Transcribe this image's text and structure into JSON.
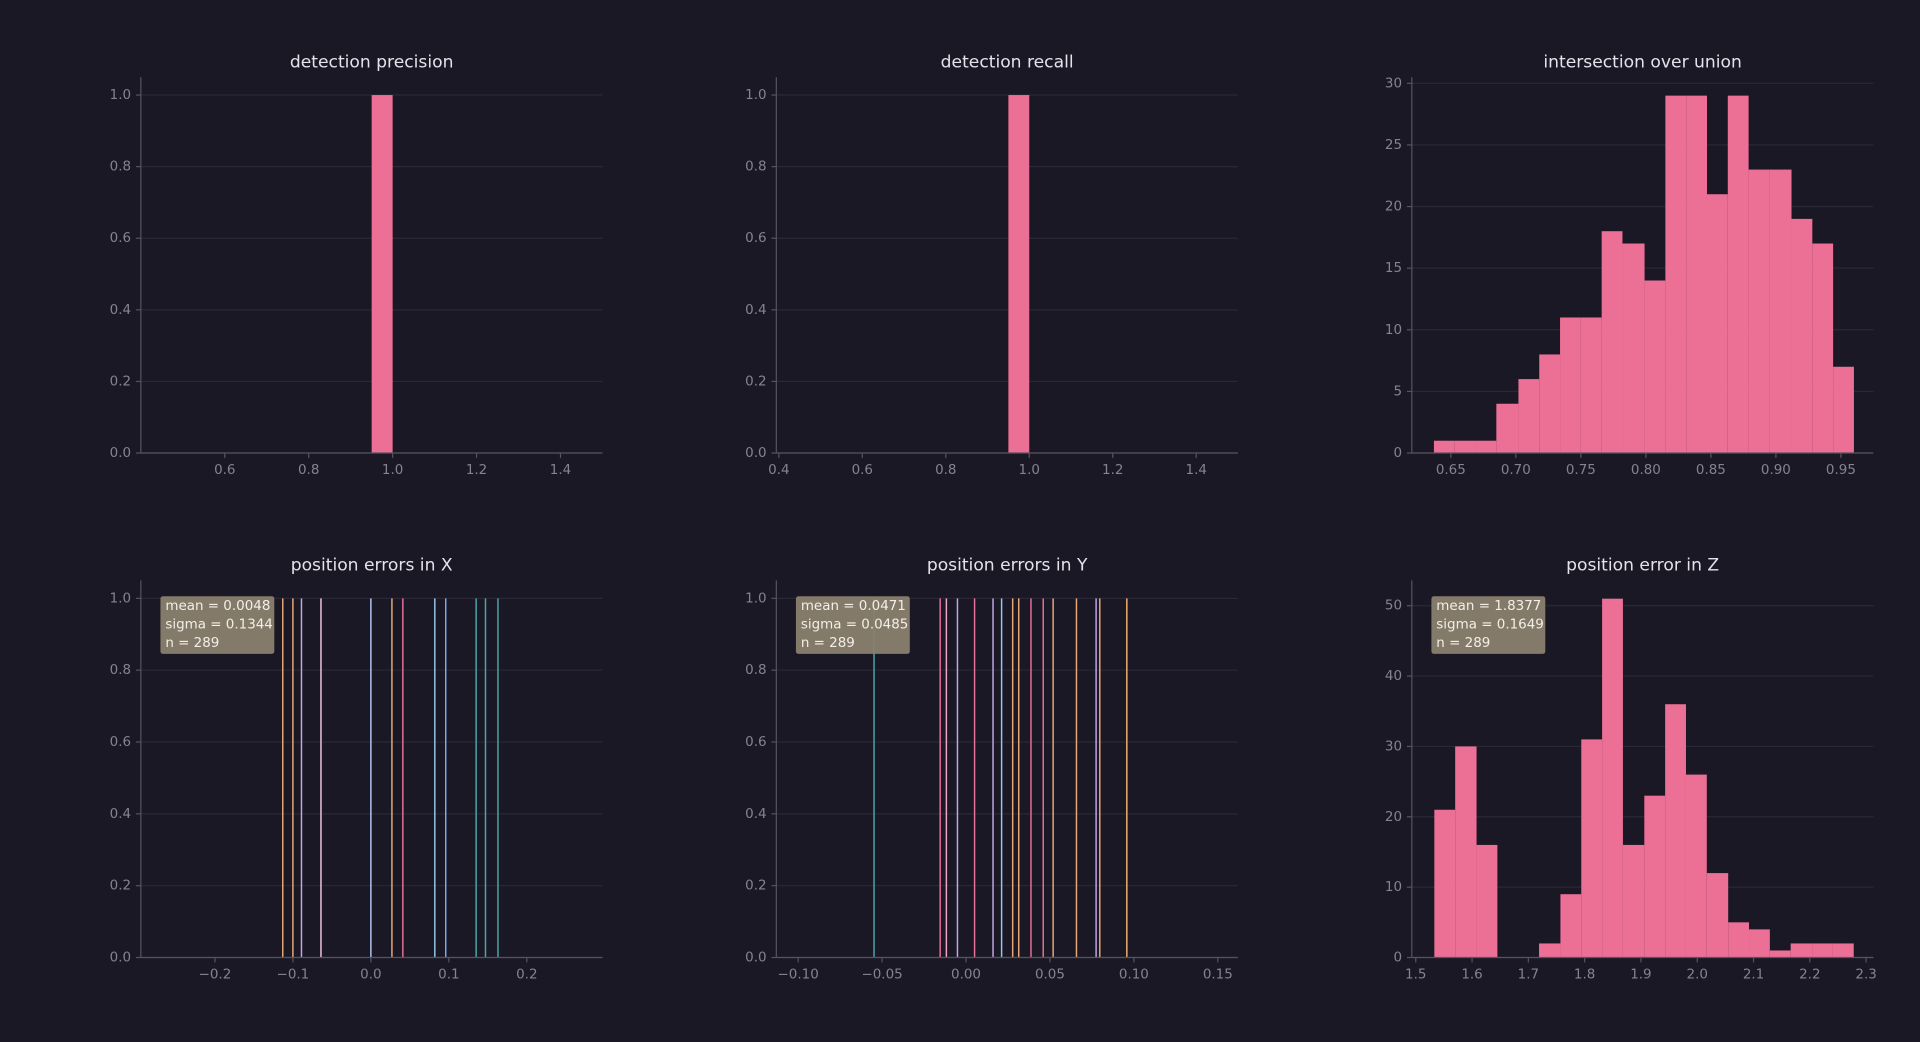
{
  "chart_data": [
    {
      "type": "histogram",
      "title": "detection precision",
      "bins": [
        0.95,
        1.0
      ],
      "values": [
        1.0
      ],
      "color": "#ec6f96",
      "xlim": [
        0.4,
        1.5
      ],
      "ylim": [
        0,
        1.05
      ],
      "xticks": [
        0.6,
        0.8,
        {
          "value": 1.0,
          "label": "1.0"
        },
        1.2,
        1.4
      ],
      "yticks": [
        {
          "value": 0,
          "label": "0.0"
        },
        0.2,
        0.4,
        0.6,
        0.8,
        {
          "value": 1.0,
          "label": "1.0"
        }
      ],
      "grid": true
    },
    {
      "type": "histogram",
      "title": "detection recall",
      "bins": [
        0.95,
        1.0
      ],
      "values": [
        1.0
      ],
      "color": "#ec6f96",
      "xlim": [
        0.394,
        1.5
      ],
      "ylim": [
        0,
        1.05
      ],
      "xticks": [
        0.4,
        0.6,
        0.8,
        {
          "value": 1.0,
          "label": "1.0"
        },
        1.2,
        1.4
      ],
      "yticks": [
        {
          "value": 0,
          "label": "0.0"
        },
        0.2,
        0.4,
        0.6,
        0.8,
        {
          "value": 1.0,
          "label": "1.0"
        }
      ],
      "grid": true
    },
    {
      "type": "histogram",
      "title": "intersection over union",
      "bins": [
        0.637,
        0.653,
        0.669,
        0.685,
        0.702,
        0.718,
        0.734,
        0.75,
        0.766,
        0.782,
        0.799,
        0.815,
        0.831,
        0.847,
        0.863,
        0.879,
        0.895,
        0.912,
        0.928,
        0.944,
        0.96
      ],
      "values": [
        1,
        1,
        1,
        4,
        6,
        8,
        11,
        11,
        18,
        17,
        14,
        29,
        29,
        21,
        29,
        23,
        23,
        19,
        17,
        7
      ],
      "color": "#ec6f96",
      "xlim": [
        0.62,
        0.975
      ],
      "ylim": [
        0,
        30.5
      ],
      "xticks": [
        0.65,
        {
          "value": 0.7,
          "label": "0.70"
        },
        0.75,
        {
          "value": 0.8,
          "label": "0.80"
        },
        0.85,
        {
          "value": 0.9,
          "label": "0.90"
        },
        0.95
      ],
      "yticks": [
        0,
        5,
        10,
        15,
        20,
        25,
        30
      ],
      "grid": true
    },
    {
      "type": "vlines",
      "title": "position errors in X",
      "x": [
        -0.113,
        -0.1,
        -0.089,
        -0.064,
        0.0,
        0.027,
        0.041,
        0.082,
        0.096,
        0.135,
        0.147,
        0.163
      ],
      "values": [
        1,
        1,
        1,
        1,
        1,
        1,
        1,
        1,
        1,
        1,
        1,
        1
      ],
      "colors": [
        "#e9a878",
        "#e9a878",
        "#c3a6e8",
        "#f0c6dc",
        "#b4c6f0",
        "#e9a878",
        "#e8709a",
        "#94c8ee",
        "#7ca8e8",
        "#4aa6aa",
        "#4aa6aa",
        "#4aa6aa"
      ],
      "xlim": [
        -0.295,
        0.297
      ],
      "ylim": [
        0,
        1.05
      ],
      "xticks": [
        {
          "value": -0.2,
          "label": "−0.2"
        },
        {
          "value": -0.1,
          "label": "−0.1"
        },
        {
          "value": 0,
          "label": "0.0"
        },
        0.1,
        0.2
      ],
      "yticks": [
        {
          "value": 0,
          "label": "0.0"
        },
        0.2,
        0.4,
        0.6,
        0.8,
        {
          "value": 1.0,
          "label": "1.0"
        }
      ],
      "grid": true,
      "annotation": [
        "mean = 0.0048",
        "sigma = 0.1344",
        "n = 289"
      ]
    },
    {
      "type": "vlines",
      "title": "position errors in Y",
      "x": [
        -0.0548,
        -0.0154,
        -0.0117,
        -0.0051,
        0.0051,
        0.0161,
        0.0212,
        0.0278,
        0.0314,
        0.0387,
        0.046,
        0.0519,
        0.0658,
        0.0775,
        0.0797,
        0.0958
      ],
      "values": [
        1,
        1,
        1,
        1,
        1,
        1,
        1,
        1,
        1,
        1,
        1,
        1,
        1,
        1,
        1,
        1
      ],
      "colors": [
        "#4aa6aa",
        "#e8709a",
        "#f0a6c8",
        "#c3a6e8",
        "#e8709a",
        "#c3a6e8",
        "#94c8ee",
        "#e9a878",
        "#e9a878",
        "#e8709a",
        "#e8709a",
        "#e9a878",
        "#e9a878",
        "#c3a6e8",
        "#e9a878",
        "#f2b070"
      ],
      "xlim": [
        -0.113,
        0.162
      ],
      "ylim": [
        0,
        1.05
      ],
      "xticks": [
        {
          "value": -0.1,
          "label": "−0.10"
        },
        {
          "value": -0.05,
          "label": "−0.05"
        },
        {
          "value": 0,
          "label": "0.00"
        },
        0.05,
        {
          "value": 0.1,
          "label": "0.10"
        },
        0.15
      ],
      "yticks": [
        {
          "value": 0,
          "label": "0.0"
        },
        0.2,
        0.4,
        0.6,
        0.8,
        {
          "value": 1.0,
          "label": "1.0"
        }
      ],
      "grid": true,
      "annotation": [
        "mean = 0.0471",
        "sigma = 0.0485",
        "n = 289"
      ]
    },
    {
      "type": "histogram",
      "title": "position error in Z",
      "bins": [
        1.533,
        1.57,
        1.608,
        1.645,
        1.682,
        1.719,
        1.757,
        1.794,
        1.831,
        1.868,
        1.906,
        1.943,
        1.98,
        2.017,
        2.055,
        2.092,
        2.129,
        2.166,
        2.204,
        2.241,
        2.278
      ],
      "values": [
        21,
        30,
        16,
        0,
        0,
        2,
        9,
        31,
        51,
        16,
        23,
        36,
        26,
        12,
        5,
        4,
        1,
        2,
        2,
        2
      ],
      "color": "#ec6f96",
      "xlim": [
        1.493,
        2.313
      ],
      "ylim": [
        0,
        53.6
      ],
      "xticks": [
        1.5,
        1.6,
        1.7,
        1.8,
        1.9,
        {
          "value": 2.0,
          "label": "2.0"
        },
        2.1,
        2.2,
        2.3
      ],
      "yticks": [
        0,
        10,
        20,
        30,
        40,
        50
      ],
      "grid": true,
      "annotation": [
        "mean = 1.8377",
        "sigma = 0.1649",
        "n = 289"
      ]
    }
  ]
}
